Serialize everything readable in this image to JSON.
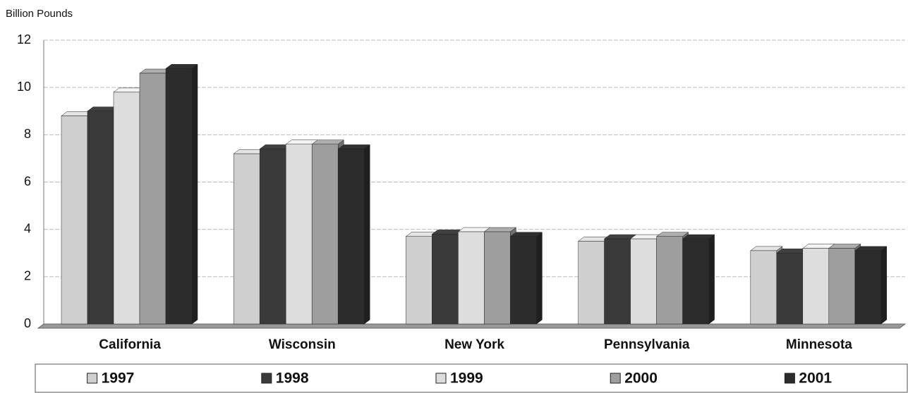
{
  "chart_data": {
    "type": "bar",
    "ylabel": "Billion Pounds",
    "categories": [
      "California",
      "Wisconsin",
      "New York",
      "Pennsylvania",
      "Minnesota"
    ],
    "series": [
      {
        "name": "1997",
        "color": "#cfcfcf",
        "values": [
          8.8,
          7.2,
          3.7,
          3.5,
          3.1
        ]
      },
      {
        "name": "1998",
        "color": "#3a3a3a",
        "values": [
          9.0,
          7.4,
          3.8,
          3.6,
          3.0
        ]
      },
      {
        "name": "1999",
        "color": "#dddddd",
        "values": [
          9.8,
          7.6,
          3.9,
          3.6,
          3.2
        ]
      },
      {
        "name": "2000",
        "color": "#9e9e9e",
        "values": [
          10.6,
          7.6,
          3.9,
          3.7,
          3.2
        ]
      },
      {
        "name": "2001",
        "color": "#2c2c2c",
        "values": [
          10.8,
          7.4,
          3.7,
          3.6,
          3.1
        ]
      }
    ],
    "ylim": [
      0,
      12
    ],
    "yticks": [
      0,
      2,
      4,
      6,
      8,
      10,
      12
    ],
    "grid": true,
    "legend": "bottom"
  }
}
